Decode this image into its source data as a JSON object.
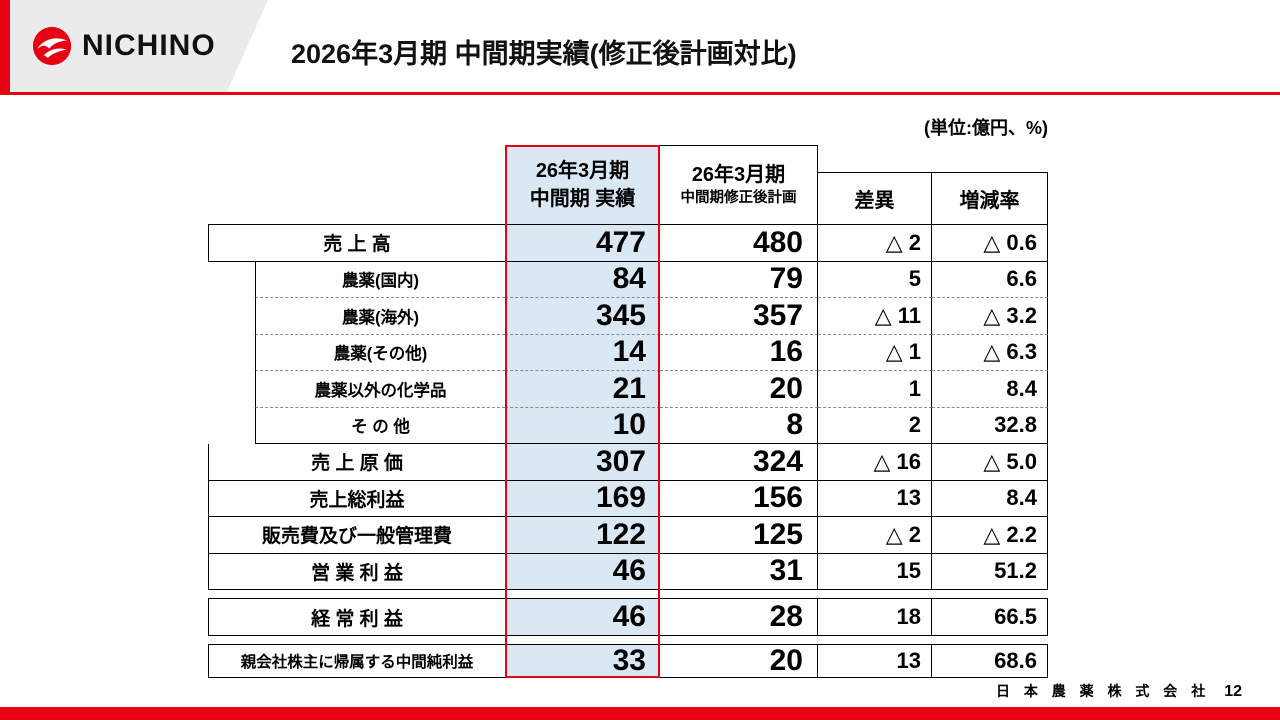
{
  "header": {
    "logo_text": "NICHINO",
    "title": "2026年3月期 中間期実績(修正後計画対比)"
  },
  "unit_note": "(単位:億円、%)",
  "table": {
    "col_headers": {
      "actual_line1": "26年3月期",
      "actual_line2": "中間期 実績",
      "plan_line1": "26年3月期",
      "plan_line2": "中間期修正後計画",
      "diff": "差異",
      "rate": "増減率"
    },
    "rows": [
      {
        "block": 1,
        "sub": false,
        "label": "売 上 高",
        "actual": "477",
        "plan": "480",
        "diff": "△ 2",
        "rate": "△ 0.6"
      },
      {
        "block": 1,
        "sub": true,
        "label": "農薬(国内)",
        "actual": "84",
        "plan": "79",
        "diff": "5",
        "rate": "6.6"
      },
      {
        "block": 1,
        "sub": true,
        "label": "農薬(海外)",
        "actual": "345",
        "plan": "357",
        "diff": "△ 11",
        "rate": "△ 3.2"
      },
      {
        "block": 1,
        "sub": true,
        "label": "農薬(その他)",
        "actual": "14",
        "plan": "16",
        "diff": "△ 1",
        "rate": "△ 6.3"
      },
      {
        "block": 1,
        "sub": true,
        "label": "農薬以外の化学品",
        "actual": "21",
        "plan": "20",
        "diff": "1",
        "rate": "8.4"
      },
      {
        "block": 1,
        "sub": true,
        "label": "そ の 他",
        "actual": "10",
        "plan": "8",
        "diff": "2",
        "rate": "32.8"
      },
      {
        "block": 1,
        "sub": false,
        "label": "売 上 原 価",
        "actual": "307",
        "plan": "324",
        "diff": "△ 16",
        "rate": "△ 5.0"
      },
      {
        "block": 1,
        "sub": false,
        "label": "売上総利益",
        "actual": "169",
        "plan": "156",
        "diff": "13",
        "rate": "8.4"
      },
      {
        "block": 1,
        "sub": false,
        "label": "販売費及び一般管理費",
        "actual": "122",
        "plan": "125",
        "diff": "△ 2",
        "rate": "△ 2.2"
      },
      {
        "block": 1,
        "sub": false,
        "label": "営 業 利 益",
        "actual": "46",
        "plan": "31",
        "diff": "15",
        "rate": "51.2"
      },
      {
        "block": 2,
        "sub": false,
        "label": "経 常 利 益",
        "actual": "46",
        "plan": "28",
        "diff": "18",
        "rate": "66.5"
      },
      {
        "block": 3,
        "sub": false,
        "label": "親会社株主に帰属する中間純利益",
        "actual": "33",
        "plan": "20",
        "diff": "13",
        "rate": "68.6"
      }
    ]
  },
  "footer": {
    "company": "日 本 農 薬 株 式 会 社",
    "page": "12"
  },
  "colors": {
    "brand_red": "#e60012",
    "highlight_blue": "#d9e8f2",
    "highlight_border": "#e60012"
  }
}
